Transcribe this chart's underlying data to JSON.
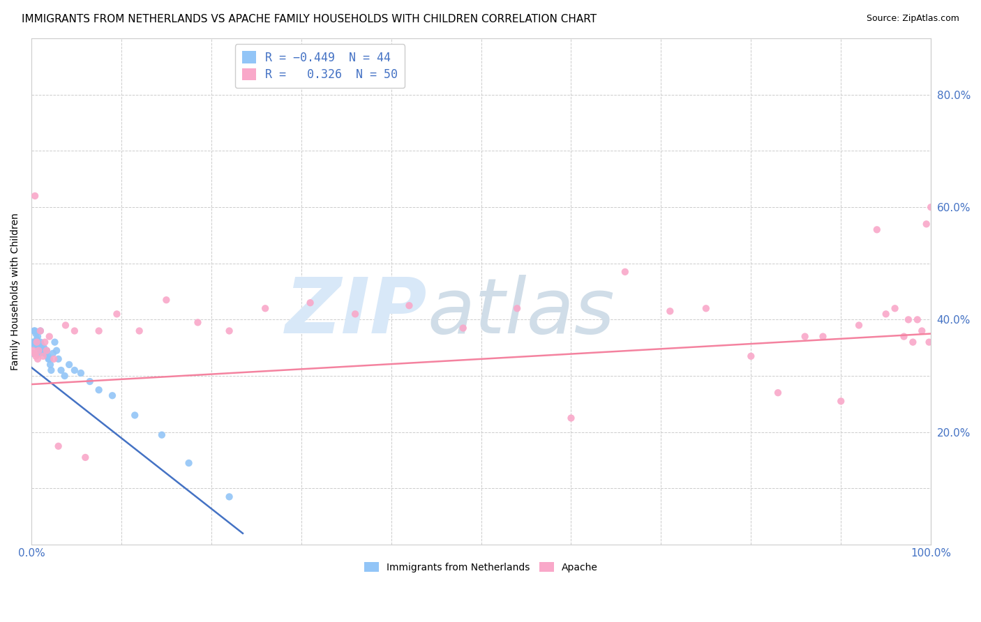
{
  "title": "IMMIGRANTS FROM NETHERLANDS VS APACHE FAMILY HOUSEHOLDS WITH CHILDREN CORRELATION CHART",
  "source": "Source: ZipAtlas.com",
  "ylabel": "Family Households with Children",
  "xlim": [
    0.0,
    1.0
  ],
  "ylim": [
    0.0,
    0.9
  ],
  "blue_scatter_x": [
    0.001,
    0.002,
    0.003,
    0.003,
    0.004,
    0.004,
    0.005,
    0.005,
    0.006,
    0.007,
    0.007,
    0.008,
    0.008,
    0.009,
    0.01,
    0.01,
    0.011,
    0.012,
    0.013,
    0.014,
    0.015,
    0.016,
    0.017,
    0.018,
    0.019,
    0.02,
    0.021,
    0.022,
    0.024,
    0.026,
    0.028,
    0.03,
    0.033,
    0.037,
    0.042,
    0.048,
    0.055,
    0.065,
    0.075,
    0.09,
    0.115,
    0.145,
    0.175,
    0.22
  ],
  "blue_scatter_y": [
    0.36,
    0.34,
    0.38,
    0.355,
    0.36,
    0.38,
    0.375,
    0.355,
    0.365,
    0.36,
    0.37,
    0.345,
    0.355,
    0.34,
    0.36,
    0.38,
    0.355,
    0.35,
    0.345,
    0.35,
    0.34,
    0.34,
    0.345,
    0.335,
    0.33,
    0.33,
    0.32,
    0.31,
    0.34,
    0.36,
    0.345,
    0.33,
    0.31,
    0.3,
    0.32,
    0.31,
    0.305,
    0.29,
    0.275,
    0.265,
    0.23,
    0.195,
    0.145,
    0.085
  ],
  "pink_scatter_x": [
    0.002,
    0.003,
    0.004,
    0.005,
    0.006,
    0.007,
    0.008,
    0.01,
    0.013,
    0.015,
    0.017,
    0.02,
    0.025,
    0.03,
    0.038,
    0.048,
    0.06,
    0.075,
    0.095,
    0.12,
    0.15,
    0.185,
    0.22,
    0.26,
    0.31,
    0.36,
    0.42,
    0.48,
    0.54,
    0.6,
    0.66,
    0.71,
    0.75,
    0.8,
    0.83,
    0.86,
    0.88,
    0.9,
    0.92,
    0.94,
    0.95,
    0.96,
    0.97,
    0.975,
    0.98,
    0.985,
    0.99,
    0.995,
    0.998,
    1.0
  ],
  "pink_scatter_y": [
    0.345,
    0.34,
    0.62,
    0.335,
    0.36,
    0.33,
    0.345,
    0.38,
    0.335,
    0.36,
    0.345,
    0.37,
    0.33,
    0.175,
    0.39,
    0.38,
    0.155,
    0.38,
    0.41,
    0.38,
    0.435,
    0.395,
    0.38,
    0.42,
    0.43,
    0.41,
    0.425,
    0.385,
    0.42,
    0.225,
    0.485,
    0.415,
    0.42,
    0.335,
    0.27,
    0.37,
    0.37,
    0.255,
    0.39,
    0.56,
    0.41,
    0.42,
    0.37,
    0.4,
    0.36,
    0.4,
    0.38,
    0.57,
    0.36,
    0.6
  ],
  "blue_line_x": [
    0.0,
    0.235
  ],
  "blue_line_y": [
    0.315,
    0.02
  ],
  "pink_line_x": [
    0.0,
    1.0
  ],
  "pink_line_y": [
    0.285,
    0.375
  ],
  "blue_color": "#92c5f7",
  "pink_color": "#f9a8c9",
  "blue_line_color": "#4472c4",
  "pink_line_color": "#f4829f",
  "watermark_zip_color": "#d8e8f8",
  "watermark_atlas_color": "#d0dde8",
  "grid_color": "#cccccc",
  "background_color": "#ffffff",
  "title_fontsize": 11,
  "axis_label_fontsize": 10,
  "tick_fontsize": 11,
  "legend_fontsize": 12
}
